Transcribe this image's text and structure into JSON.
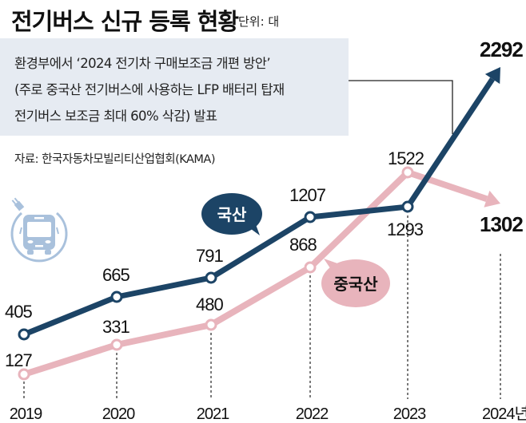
{
  "header": {
    "title": "전기버스 신규 등록 현황",
    "unit": "단위: 대"
  },
  "note": {
    "lines": [
      "환경부에서 ‘2024 전기차 구매보조금 개편 방안’",
      "(주로 중국산 전기버스에 사용하는 LFP 배터리 탑재",
      "전기버스 보조금 최대 60% 삭감) 발표"
    ]
  },
  "source": "자료: 한국자동차모빌리티산업협회(KAMA)",
  "icon": "electric-bus-icon",
  "chart_data": {
    "type": "line",
    "title": "전기버스 신규 등록 현황",
    "unit": "단위: 대",
    "categories": [
      "2019",
      "2020",
      "2021",
      "2022",
      "2023",
      "2024년"
    ],
    "series": [
      {
        "name": "국산",
        "color": "#1c4466",
        "values": [
          405,
          665,
          791,
          1207,
          1293,
          2292
        ],
        "labels": [
          "405",
          "665",
          "791",
          "1207",
          "1293",
          "2292"
        ]
      },
      {
        "name": "중국산",
        "color": "#e8b4bc",
        "values": [
          127,
          331,
          480,
          868,
          1522,
          1302
        ],
        "labels": [
          "127",
          "331",
          "480",
          "868",
          "1522",
          "1302"
        ]
      }
    ],
    "xlabel": "",
    "ylabel": "",
    "grid": false,
    "legend": "inline speech bubbles",
    "annotations": [
      "환경부에서 ‘2024 전기차 구매보조금 개편 방안’ 발표 (2024)"
    ]
  }
}
